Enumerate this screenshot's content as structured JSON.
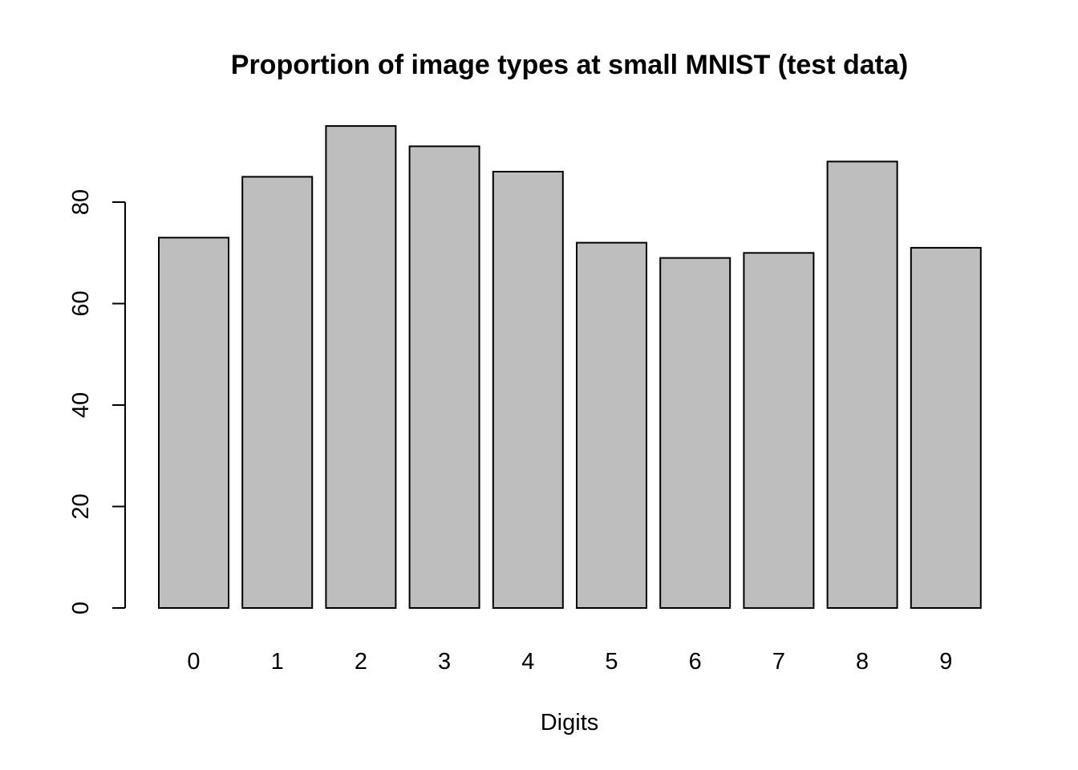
{
  "chart_data": {
    "type": "bar",
    "title": "Proportion of image types at small MNIST (test data)",
    "xlabel": "Digits",
    "ylabel": "",
    "categories": [
      "0",
      "1",
      "2",
      "3",
      "4",
      "5",
      "6",
      "7",
      "8",
      "9"
    ],
    "values": [
      73,
      85,
      95,
      91,
      86,
      72,
      69,
      70,
      88,
      71
    ],
    "ylim": [
      0,
      100
    ],
    "yticks": [
      0,
      20,
      40,
      60,
      80
    ],
    "ytick_labels": [
      "0",
      "20",
      "40",
      "60",
      "80"
    ],
    "bar_color": "#bebebe",
    "grid": false,
    "legend": "none"
  }
}
